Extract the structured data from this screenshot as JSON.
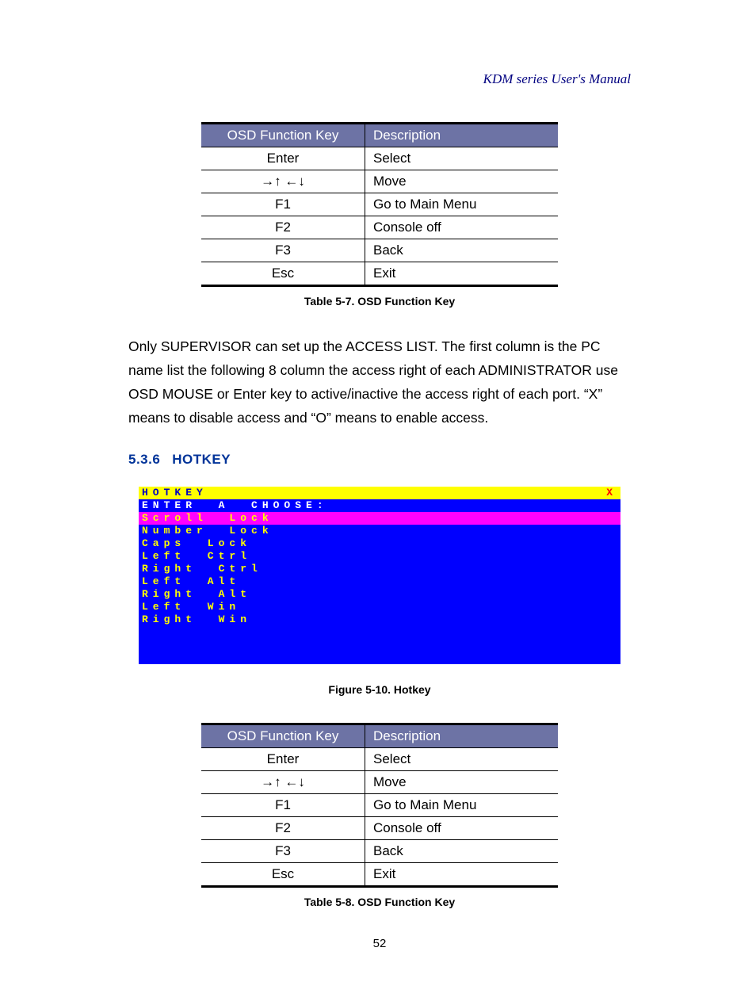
{
  "running_head": "KDM series User's Manual",
  "page_number": "52",
  "table1": {
    "caption": "Table 5-7. OSD Function Key",
    "headers": {
      "key": "OSD Function Key",
      "desc": "Description"
    },
    "rows": [
      {
        "key": "Enter",
        "desc": "Select"
      },
      {
        "key": "→↑ ←↓",
        "desc": "Move"
      },
      {
        "key": "F1",
        "desc": "Go to Main Menu"
      },
      {
        "key": "F2",
        "desc": "Console off"
      },
      {
        "key": "F3",
        "desc": "Back"
      },
      {
        "key": "Esc",
        "desc": "Exit"
      }
    ]
  },
  "paragraph": "Only SUPERVISOR can set up the ACCESS LIST. The first column is the PC name list the following 8 column the access right of each ADMINISTRATOR use OSD MOUSE or Enter key to active/inactive the access right of each port. “X” means to disable access and “O” means to enable access.",
  "section": {
    "number": "5.3.6",
    "title": "HOTKEY"
  },
  "osd": {
    "title": "HOTKEY",
    "close": "X",
    "prompt": "ENTER  A  CHOOSE:",
    "selected": "Scroll  Lock",
    "options": [
      "Number  Lock",
      "Caps  Lock",
      "Left  Ctrl",
      "Right  Ctrl",
      "Left  Alt",
      "Right  Alt",
      "Left  Win",
      "Right  Win"
    ],
    "colors": {
      "title_bg": "#ffff00",
      "title_fg": "#0000c0",
      "title_x_fg": "#ff0000",
      "prompt_bg": "#0000ff",
      "prompt_fg": "#ffffff",
      "selected_bg": "#ff00ff",
      "selected_fg": "#ffff00",
      "body_bg": "#0000ff",
      "body_fg": "#ffff00"
    }
  },
  "figure_caption": "Figure 5-10. Hotkey",
  "table2": {
    "caption": "Table 5-8. OSD Function Key",
    "headers": {
      "key": "OSD Function Key",
      "desc": "Description"
    },
    "rows": [
      {
        "key": "Enter",
        "desc": "Select"
      },
      {
        "key": "→↑ ←↓",
        "desc": "Move"
      },
      {
        "key": "F1",
        "desc": "Go to Main Menu"
      },
      {
        "key": "F2",
        "desc": "Console off"
      },
      {
        "key": "F3",
        "desc": "Back"
      },
      {
        "key": "Esc",
        "desc": "Exit"
      }
    ]
  }
}
